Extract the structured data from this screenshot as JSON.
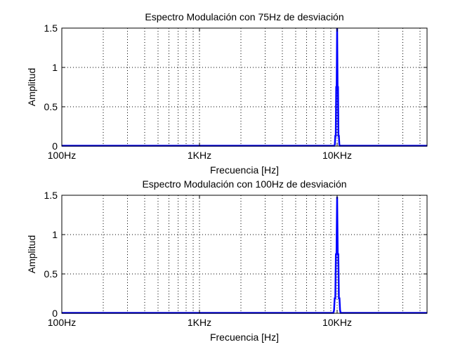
{
  "chart_data": [
    {
      "type": "line",
      "title": "Espectro Modulación con 75Hz de desviación",
      "xlabel": "Frecuencia [Hz]",
      "ylabel": "Amplitud",
      "x_scale": "log",
      "xlim": [
        100,
        45000
      ],
      "ylim": [
        0,
        1.5
      ],
      "x_ticks": [
        100,
        1000,
        10000
      ],
      "x_tick_labels": [
        "100Hz",
        "1KHz",
        "10KHz"
      ],
      "y_ticks": [
        0,
        0.5,
        1,
        1.5
      ],
      "y_tick_labels": [
        "0",
        "0.5",
        "1",
        "1.5"
      ],
      "grid": true,
      "line_color": "#0000ff",
      "series": [
        {
          "x": [
            100,
            9550,
            9625,
            9700,
            9775,
            9850,
            9925,
            10000,
            10075,
            10150,
            10225,
            10300,
            10375,
            10450,
            45000
          ],
          "values": [
            0.005,
            0.005,
            0.02,
            0.13,
            0.13,
            0.75,
            0.75,
            1.5,
            0.75,
            0.75,
            0.13,
            0.13,
            0.02,
            0.005,
            0.005
          ]
        }
      ]
    },
    {
      "type": "line",
      "title": "Espectro Modulación con 100Hz de desviación",
      "xlabel": "Frecuencia [Hz]",
      "ylabel": "Amplitud",
      "x_scale": "log",
      "xlim": [
        100,
        45000
      ],
      "ylim": [
        0,
        1.5
      ],
      "x_ticks": [
        100,
        1000,
        10000
      ],
      "x_tick_labels": [
        "100Hz",
        "1KHz",
        "10KHz"
      ],
      "y_ticks": [
        0,
        0.5,
        1,
        1.5
      ],
      "y_tick_labels": [
        "0",
        "0.5",
        "1",
        "1.5"
      ],
      "grid": true,
      "line_color": "#0000ff",
      "series": [
        {
          "x": [
            100,
            9400,
            9500,
            9600,
            9700,
            9800,
            9900,
            10000,
            10100,
            10200,
            10300,
            10400,
            10500,
            10600,
            45000
          ],
          "values": [
            0.005,
            0.005,
            0.04,
            0.19,
            0.19,
            0.75,
            0.75,
            1.48,
            0.75,
            0.75,
            0.19,
            0.19,
            0.04,
            0.005,
            0.005
          ]
        }
      ]
    }
  ]
}
